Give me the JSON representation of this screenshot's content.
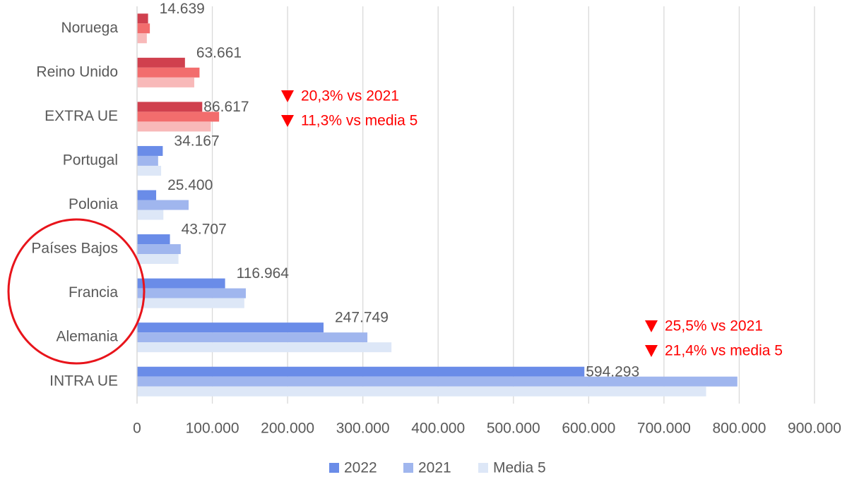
{
  "chart_data": {
    "type": "bar",
    "orientation": "horizontal",
    "categories": [
      "Noruega",
      "Reino Unido",
      "EXTRA UE",
      "Portugal",
      "Polonia",
      "Países Bajos",
      "Francia",
      "Alemania",
      "INTRA UE"
    ],
    "series": [
      {
        "name": "2022",
        "color": "#6a8ce8",
        "point_colors": [
          "#d0404e",
          "#d0404e",
          "#d0404e",
          "#6a8ce8",
          "#6a8ce8",
          "#6a8ce8",
          "#6a8ce8",
          "#6a8ce8",
          "#6a8ce8"
        ],
        "values": [
          14639,
          63661,
          86617,
          34167,
          25400,
          43707,
          116964,
          247749,
          594293
        ],
        "value_labels": [
          "14.639",
          "63.661",
          "86.617",
          "34.167",
          "25.400",
          "43.707",
          "116.964",
          "247.749",
          "594.293"
        ]
      },
      {
        "name": "2021",
        "color": "#a0b6ee",
        "point_colors": [
          "#f26d6d",
          "#f26d6d",
          "#f26d6d",
          "#a0b6ee",
          "#a0b6ee",
          "#a0b6ee",
          "#a0b6ee",
          "#a0b6ee",
          "#a0b6ee"
        ],
        "values": [
          17000,
          83000,
          109000,
          28000,
          68500,
          58000,
          144500,
          306000,
          797500
        ]
      },
      {
        "name": "Media 5",
        "color": "#dde7f7",
        "point_colors": [
          "#f8b9b9",
          "#f8b9b9",
          "#f8b9b9",
          "#dde7f7",
          "#dde7f7",
          "#dde7f7",
          "#dde7f7",
          "#dde7f7",
          "#dde7f7"
        ],
        "values": [
          13000,
          76000,
          98000,
          32000,
          35000,
          55000,
          142500,
          338000,
          756000
        ]
      }
    ],
    "xlim": [
      0,
      900000
    ],
    "xticks": [
      0,
      {
        "value": 100000,
        "label": "100.000"
      },
      {
        "value": 200000,
        "label": "200.000"
      },
      {
        "value": 300000,
        "label": "300.000"
      },
      {
        "value": 400000,
        "label": "400.000"
      },
      {
        "value": 500000,
        "label": "500.000"
      },
      {
        "value": 600000,
        "label": "600.000"
      },
      {
        "value": 700000,
        "label": "700.000"
      },
      {
        "value": 800000,
        "label": "800.000"
      },
      {
        "value": 900000,
        "label": "900.000"
      }
    ],
    "grid": true,
    "legend": "bottom",
    "annotations": [
      {
        "category": 2,
        "lines": [
          "20,3% vs 2021",
          "11,3% vs media 5"
        ]
      },
      {
        "category": 8,
        "lines": [
          "25,5% vs 2021",
          "21,4% vs media 5"
        ]
      }
    ]
  }
}
